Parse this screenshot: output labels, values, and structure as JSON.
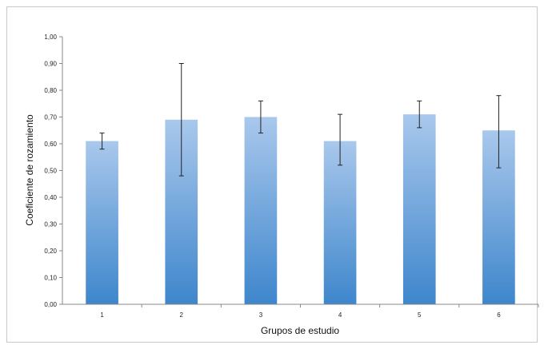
{
  "chart_data": {
    "type": "bar",
    "title": "",
    "xlabel": "Grupos de estudio",
    "ylabel": "Coeficiente de rozamiento",
    "ylim": [
      0,
      1.0
    ],
    "yticks": [
      "0,00",
      "0,10",
      "0,20",
      "0,30",
      "0,40",
      "0,50",
      "0,60",
      "0,70",
      "0,80",
      "0,90",
      "1,00"
    ],
    "categories": [
      "1",
      "2",
      "3",
      "4",
      "5",
      "6"
    ],
    "values": [
      0.61,
      0.69,
      0.7,
      0.61,
      0.71,
      0.65
    ],
    "error_low": [
      0.58,
      0.48,
      0.64,
      0.52,
      0.66,
      0.51
    ],
    "error_high": [
      0.64,
      0.9,
      0.76,
      0.71,
      0.76,
      0.78
    ],
    "grid": false,
    "legend": "none",
    "colors": {
      "bar_top": "#a9c8ec",
      "bar_bottom": "#3e86cc",
      "error_bar": "#222222",
      "axis": "#888888"
    }
  }
}
